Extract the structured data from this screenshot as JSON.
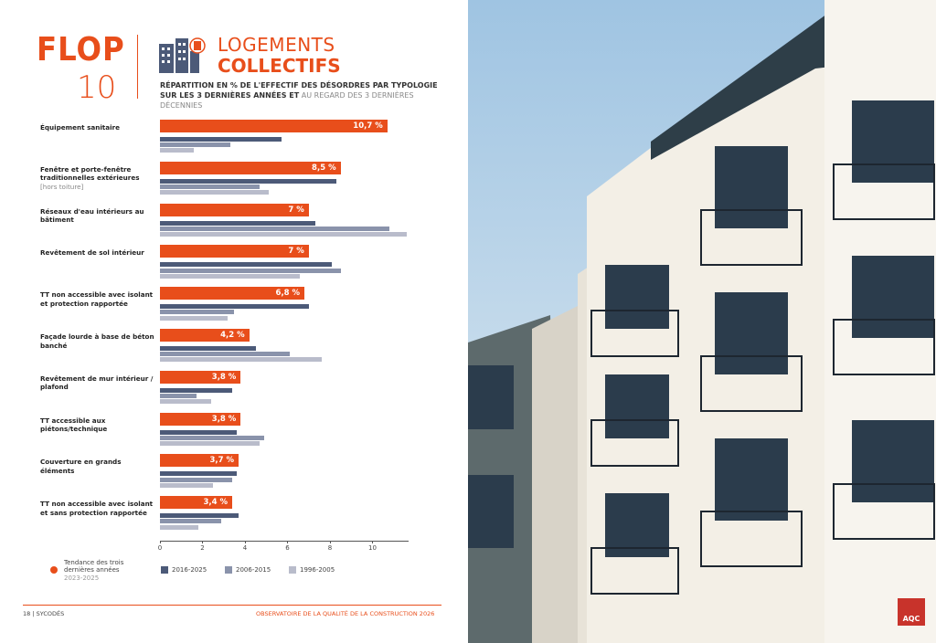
{
  "header": {
    "flop": "FLOP",
    "number": "10",
    "title_light": "LOGEMENTS",
    "title_bold": "COLLECTIFS",
    "subtitle_bold": "RÉPARTITION EN % DE L'EFFECTIF DES DÉSORDRES PAR TYPOLOGIE SUR LES 3 DERNIÈRES ANNÉES ET",
    "subtitle_light": "AU REGARD DES 3 DERNIÈRES DÉCENNIES"
  },
  "chart_data": {
    "type": "hbar",
    "categories": [
      "Équipement sanitaire",
      "Fenêtre et porte-fenêtre traditionnelles extérieures",
      "Réseaux d'eau intérieurs au bâtiment",
      "Revêtement de sol intérieur",
      "TT non accessible avec isolant et protection rapportée",
      "Façade lourde à base de béton banché",
      "Revêtement de mur intérieur / plafond",
      "TT accessible aux piétons/technique",
      "Couverture en grands éléments",
      "TT non accessible avec isolant et sans protection rapportée"
    ],
    "category_notes": [
      null,
      "[hors toiture]",
      null,
      null,
      null,
      null,
      null,
      null,
      null,
      null
    ],
    "series": [
      {
        "name": "Tendance des trois dernières années",
        "period": "2023-2025",
        "color": "#e84e1b",
        "values": [
          10.7,
          8.5,
          7,
          7,
          6.8,
          4.2,
          3.8,
          3.8,
          3.7,
          3.4
        ],
        "value_labels": [
          "10,7 %",
          "8,5 %",
          "7 %",
          "7 %",
          "6,8 %",
          "4,2 %",
          "3,8 %",
          "3,8 %",
          "3,7 %",
          "3,4 %"
        ]
      },
      {
        "name": "2016-2025",
        "color": "#4c5a78",
        "values": [
          5.7,
          8.3,
          7.3,
          8.1,
          7.0,
          4.5,
          3.4,
          3.6,
          3.6,
          3.7
        ]
      },
      {
        "name": "2006-2015",
        "color": "#8a93ab",
        "values": [
          3.3,
          4.7,
          10.8,
          8.5,
          3.5,
          6.1,
          1.7,
          4.9,
          3.4,
          2.9
        ]
      },
      {
        "name": "1996-2005",
        "color": "#b9bccb",
        "values": [
          1.6,
          5.1,
          11.6,
          6.6,
          3.2,
          7.6,
          2.4,
          4.7,
          2.5,
          1.8
        ]
      }
    ],
    "xlim": [
      0,
      11.7
    ],
    "xticks": [
      0,
      2,
      4,
      6,
      8,
      10
    ]
  },
  "footer": {
    "left": "18 | SYCODÉS",
    "right": "OBSERVATOIRE DE LA QUALITÉ DE LA CONSTRUCTION 2026",
    "logo": "AQC"
  }
}
